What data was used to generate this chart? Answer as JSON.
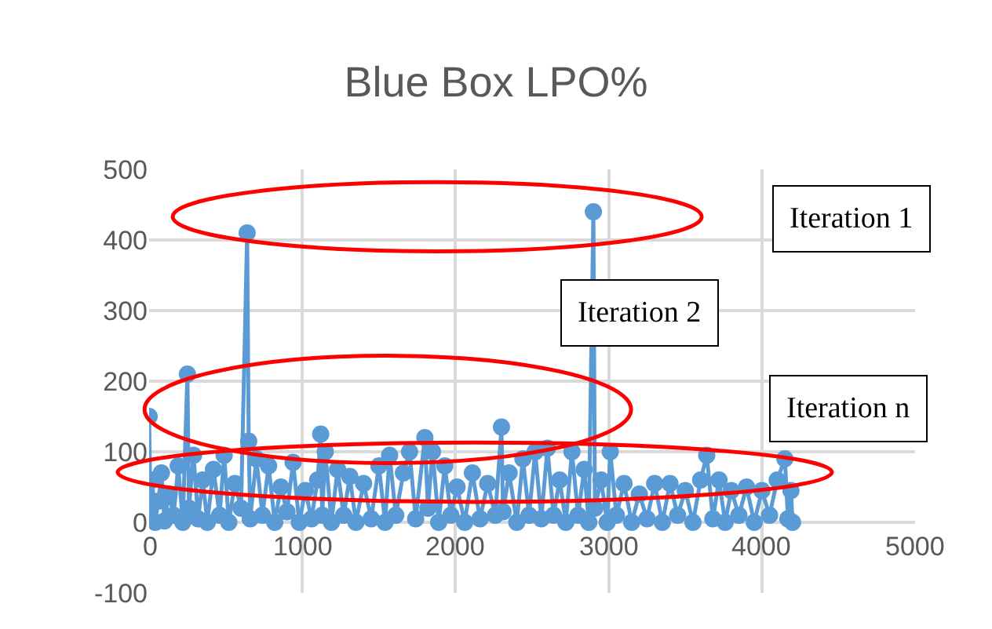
{
  "chart_data": {
    "type": "line",
    "title": "Blue Box LPO%",
    "x": [
      0,
      10,
      20,
      40,
      60,
      80,
      100,
      130,
      160,
      190,
      220,
      250,
      260,
      290,
      320,
      350,
      380,
      420,
      460,
      490,
      520,
      560,
      600,
      640,
      650,
      660,
      700,
      740,
      780,
      820,
      860,
      900,
      940,
      980,
      1020,
      1060,
      1100,
      1120,
      1130,
      1150,
      1190,
      1230,
      1270,
      1310,
      1350,
      1400,
      1450,
      1500,
      1540,
      1570,
      1610,
      1660,
      1700,
      1740,
      1800,
      1820,
      1850,
      1890,
      1930,
      1970,
      2010,
      2060,
      2110,
      2160,
      2210,
      2260,
      2300,
      2310,
      2350,
      2400,
      2440,
      2480,
      2520,
      2560,
      2600,
      2640,
      2680,
      2720,
      2760,
      2800,
      2840,
      2870,
      2900,
      2910,
      2950,
      2990,
      3010,
      3050,
      3100,
      3150,
      3200,
      3250,
      3300,
      3350,
      3400,
      3450,
      3500,
      3550,
      3600,
      3640,
      3680,
      3720,
      3760,
      3800,
      3850,
      3900,
      3950,
      4000,
      4050,
      4100,
      4150,
      4170,
      4190,
      4200
    ],
    "series": [
      {
        "color": "#5b9bd5",
        "values": [
          150,
          5,
          60,
          0,
          30,
          70,
          2,
          40,
          10,
          80,
          0,
          210,
          20,
          95,
          5,
          60,
          0,
          75,
          10,
          95,
          0,
          55,
          20,
          410,
          115,
          5,
          90,
          10,
          80,
          0,
          50,
          15,
          85,
          0,
          45,
          5,
          60,
          125,
          10,
          100,
          0,
          75,
          10,
          65,
          0,
          55,
          5,
          80,
          0,
          95,
          10,
          70,
          100,
          5,
          120,
          20,
          100,
          0,
          80,
          10,
          50,
          0,
          70,
          5,
          55,
          10,
          135,
          15,
          70,
          0,
          90,
          10,
          100,
          5,
          105,
          10,
          60,
          0,
          100,
          10,
          75,
          0,
          440,
          20,
          60,
          0,
          100,
          10,
          55,
          0,
          40,
          5,
          55,
          0,
          55,
          10,
          45,
          0,
          60,
          95,
          5,
          60,
          0,
          45,
          10,
          50,
          0,
          45,
          10,
          60,
          90,
          5,
          45,
          0
        ]
      }
    ],
    "xlim": [
      0,
      5000
    ],
    "xticks": [
      0,
      1000,
      2000,
      3000,
      4000,
      5000
    ],
    "ylim": [
      -100,
      500
    ],
    "yticks": [
      -100,
      0,
      100,
      200,
      300,
      400,
      500
    ],
    "grid": true,
    "marker": "circle",
    "line_style": "solid",
    "annotations": [
      "Iteration 1",
      "Iteration 2",
      "Iteration n"
    ]
  }
}
